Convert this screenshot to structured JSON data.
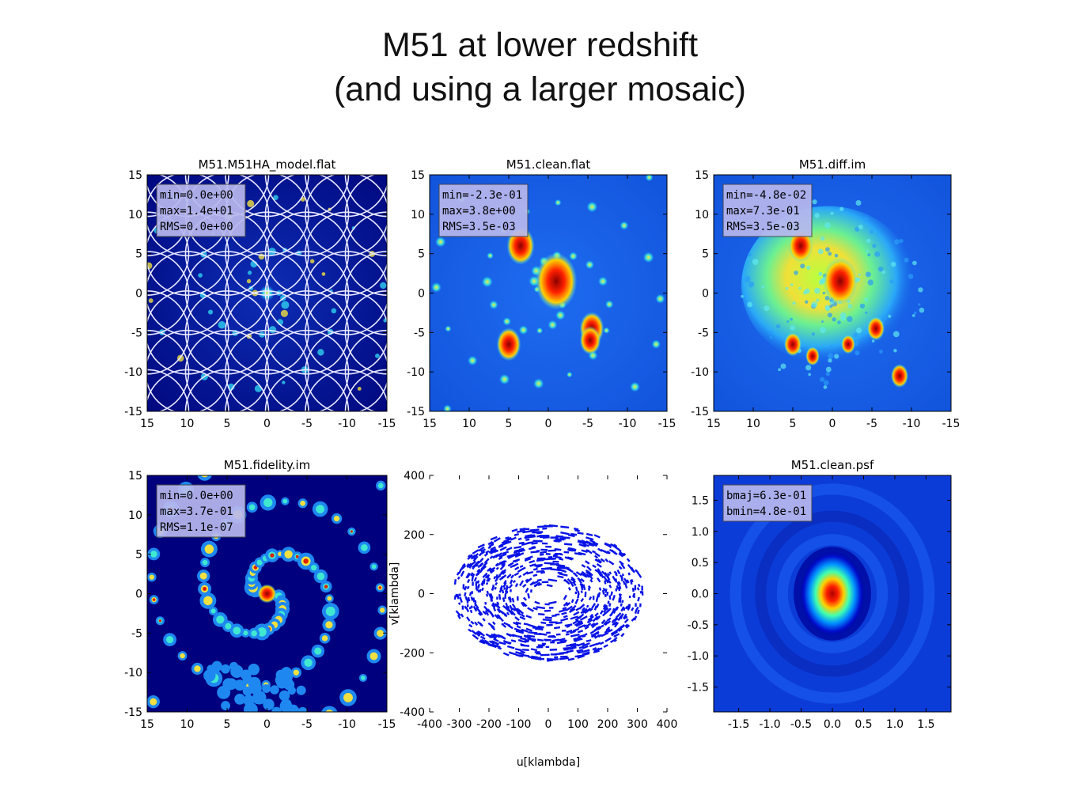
{
  "page": {
    "title_line1": "M51 at lower redshift",
    "title_line2": "(and using a larger mosaic)"
  },
  "colors": {
    "colormap": "jet",
    "background_low": "#00007f",
    "field_blue": "#1560e8",
    "uv_points": "#0a14e6",
    "mosaic_circles": "#e8e8ff",
    "stat_box": "#b8b8ee"
  },
  "chart_data": [
    {
      "type": "heatmap",
      "title": "M51.M51HA_model.flat",
      "xlim": [
        15,
        -15
      ],
      "ylim": [
        -15,
        15
      ],
      "x_ticks": [
        "15",
        "10",
        "5",
        "0",
        "-5",
        "-10",
        "-15"
      ],
      "y_ticks": [
        "15",
        "10",
        "5",
        "0",
        "-5",
        "-10",
        "-15"
      ],
      "annotation": [
        "min=0.0e+00",
        "max=1.4e+01",
        "RMS=0.0e+00"
      ],
      "mosaic_pointings_grid": 7,
      "mosaic_circle_radius": 5.2
    },
    {
      "type": "heatmap",
      "title": "M51.clean.flat",
      "xlim": [
        15,
        -15
      ],
      "ylim": [
        -15,
        15
      ],
      "x_ticks": [
        "15",
        "10",
        "5",
        "0",
        "-5",
        "-10",
        "-15"
      ],
      "y_ticks": [
        "15",
        "10",
        "5",
        "0",
        "-5",
        "-10",
        "-15"
      ],
      "annotation": [
        "min=-2.3e-01",
        "max=3.8e+00",
        "RMS=3.5e-03"
      ]
    },
    {
      "type": "heatmap",
      "title": "M51.diff.im",
      "xlim": [
        15,
        -15
      ],
      "ylim": [
        -15,
        15
      ],
      "x_ticks": [
        "15",
        "10",
        "5",
        "0",
        "-5",
        "-10",
        "-15"
      ],
      "y_ticks": [
        "15",
        "10",
        "5",
        "0",
        "-5",
        "-10",
        "-15"
      ],
      "annotation": [
        "min=-4.8e-02",
        "max=7.3e-01",
        "RMS=3.5e-03"
      ]
    },
    {
      "type": "heatmap",
      "title": "M51.fidelity.im",
      "xlim": [
        15,
        -15
      ],
      "ylim": [
        -15,
        15
      ],
      "x_ticks": [
        "15",
        "10",
        "5",
        "0",
        "-5",
        "-10",
        "-15"
      ],
      "y_ticks": [
        "15",
        "10",
        "5",
        "0",
        "-5",
        "-10",
        "-15"
      ],
      "annotation": [
        "min=0.0e+00",
        "max=3.7e-01",
        "RMS=1.1e-07"
      ]
    },
    {
      "type": "scatter",
      "title": "",
      "xlabel": "u[klambda]",
      "ylabel": "v[klambda]",
      "xlim": [
        -400,
        400
      ],
      "ylim": [
        -400,
        400
      ],
      "x_ticks": [
        "-400",
        "-300",
        "-200",
        "-100",
        "0",
        "100",
        "200",
        "300",
        "400"
      ],
      "y_ticks": [
        "400",
        "200",
        "0",
        "-200",
        "-400"
      ],
      "uv_coverage": {
        "max_radius": 320,
        "inner_hole_radius": 30
      }
    },
    {
      "type": "heatmap",
      "title": "M51.clean.psf",
      "xlim": [
        -1.9,
        1.9
      ],
      "ylim": [
        -1.9,
        1.9
      ],
      "x_ticks": [
        "-1.5",
        "-1.0",
        "-0.5",
        "0.0",
        "0.5",
        "1.0",
        "1.5"
      ],
      "y_ticks": [
        "1.5",
        "1.0",
        "0.5",
        "0.0",
        "-0.5",
        "-1.0",
        "-1.5"
      ],
      "annotation": [
        "bmaj=6.3e-01",
        "bmin=4.8e-01"
      ]
    }
  ]
}
